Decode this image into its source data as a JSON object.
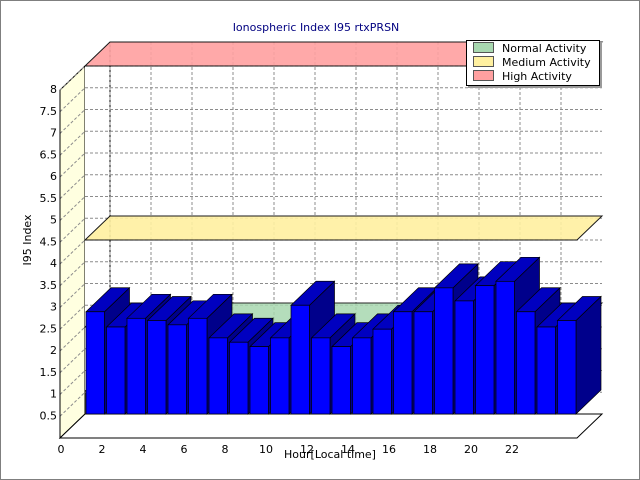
{
  "chart_data": {
    "type": "bar",
    "title": "Ionospheric Index I95 rtxPRSN",
    "xlabel": "Hour[Local time]",
    "ylabel": "I95 Index",
    "ylim": [
      0,
      8
    ],
    "grid": true,
    "legend_position": "top-right",
    "x_ticks": [
      0,
      2,
      4,
      6,
      8,
      10,
      12,
      14,
      16,
      18,
      20,
      22
    ],
    "y_ticks": [
      0.5,
      1,
      1.5,
      2,
      2.5,
      3,
      3.5,
      4,
      4.5,
      5,
      5.5,
      6,
      6.5,
      7,
      7.5,
      8
    ],
    "hours": [
      0,
      1,
      2,
      3,
      4,
      5,
      6,
      7,
      8,
      9,
      10,
      11,
      12,
      13,
      14,
      15,
      16,
      17,
      18,
      19,
      20,
      21,
      22,
      23
    ],
    "values": [
      2.35,
      2.0,
      2.2,
      2.15,
      2.05,
      2.2,
      1.75,
      1.65,
      1.55,
      1.75,
      2.5,
      1.75,
      1.55,
      1.75,
      1.95,
      2.35,
      2.35,
      2.9,
      2.6,
      2.95,
      3.05,
      2.35,
      2.0,
      2.15
    ],
    "bar_color": "#0000ff",
    "thresholds": [
      {
        "name": "Normal Activity",
        "value": 2.0,
        "color": "#a8d8b0"
      },
      {
        "name": "Medium Activity",
        "value": 4.0,
        "color": "#fff0a0"
      },
      {
        "name": "High Activity",
        "value": 8.0,
        "color": "#ffa0a0"
      }
    ]
  }
}
